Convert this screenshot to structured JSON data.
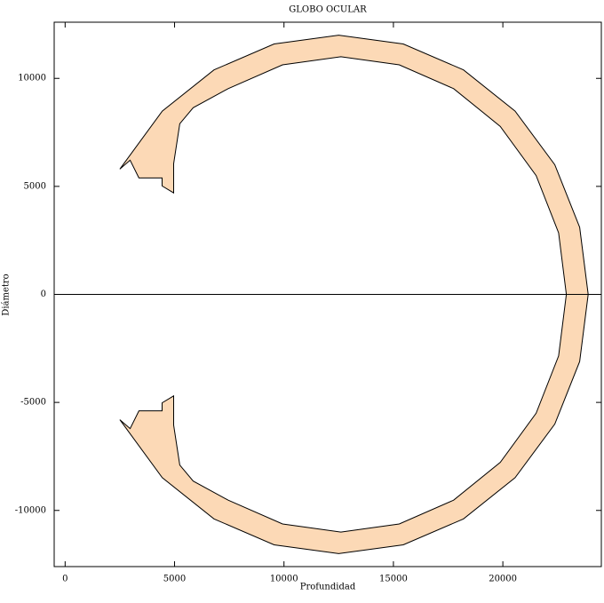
{
  "chart_data": {
    "type": "polygon",
    "title": "GLOBO OCULAR",
    "xlabel": "Profundidad",
    "ylabel": "Diámetro",
    "color": "#fcd9b6",
    "x": [
      2500,
      4439,
      6800,
      9549,
      12500,
      15451,
      18200,
      20561,
      22373,
      23511,
      23900,
      23511,
      22373,
      20561,
      18200,
      15451,
      12500,
      9549,
      6800,
      4439,
      2500,
      2970,
      3370,
      4430,
      4430,
      4960,
      4960,
      5240,
      5850,
      7450,
      9934,
      12600,
      15266,
      17750,
      19883,
      21520,
      22549,
      22900,
      22549,
      21520,
      19883,
      17750,
      15266,
      12600,
      9934,
      7450,
      5850,
      5240,
      4960,
      4960,
      4430,
      4430,
      3370,
      2970
    ],
    "y": [
      5800,
      8485,
      10392,
      11591,
      12000,
      11591,
      10392,
      8485,
      6000,
      3106,
      0,
      -3106,
      -6000,
      -8485,
      -10392,
      -11591,
      -12000,
      -11591,
      -10392,
      -8485,
      -5800,
      -6210,
      -5390,
      -5390,
      -5020,
      -4700,
      -6050,
      -7900,
      -8640,
      -9526,
      -10625,
      -11000,
      -10625,
      -9526,
      -7778,
      -5500,
      -2847,
      0,
      2847,
      5500,
      7778,
      9526,
      10625,
      11000,
      10625,
      9526,
      8640,
      7900,
      6050,
      4700,
      5020,
      5390,
      5390,
      6210
    ],
    "hline": 0,
    "xlim": [
      -500,
      24500
    ],
    "ylim": [
      -12600,
      12600
    ],
    "xticks": [
      0,
      5000,
      10000,
      15000,
      20000
    ],
    "yticks": [
      -10000,
      -5000,
      0,
      5000,
      10000
    ]
  }
}
